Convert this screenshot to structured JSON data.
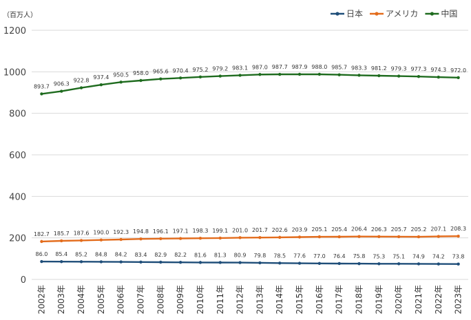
{
  "chart_data": {
    "type": "line",
    "title": "",
    "unit_label": "（百万人）",
    "xlabel": "",
    "ylabel": "",
    "ylim": [
      0,
      1200
    ],
    "yticks": [
      0,
      200,
      400,
      600,
      800,
      1000,
      1200
    ],
    "grid": true,
    "legend_position": "top-right",
    "categories": [
      "2002年",
      "2003年",
      "2004年",
      "2005年",
      "2006年",
      "2007年",
      "2008年",
      "2009年",
      "2010年",
      "2011年",
      "2012年",
      "2013年",
      "2014年",
      "2015年",
      "2016年",
      "2017年",
      "2018年",
      "2019年",
      "2020年",
      "2021年",
      "2022年",
      "2023年"
    ],
    "series": [
      {
        "name": "日本",
        "color": "#1f4e79",
        "values": [
          86.0,
          85.4,
          85.2,
          84.8,
          84.2,
          83.4,
          82.9,
          82.2,
          81.6,
          81.3,
          80.9,
          79.8,
          78.5,
          77.6,
          77.0,
          76.4,
          75.8,
          75.3,
          75.1,
          74.9,
          74.2,
          73.8
        ],
        "labels": [
          "86.0",
          "85.4",
          "85.2",
          "84.8",
          "84.2",
          "83.4",
          "82.9",
          "82.2",
          "81.6",
          "81.3",
          "80.9",
          "79.8",
          "78.5",
          "77.6",
          "77.0",
          "76.4",
          "75.8",
          "75.3",
          "75.1",
          "74.9",
          "74.2",
          "73.8"
        ]
      },
      {
        "name": "アメリカ",
        "color": "#e36c1c",
        "values": [
          182.7,
          185.7,
          187.6,
          190.0,
          192.3,
          194.8,
          196.1,
          197.1,
          198.3,
          199.1,
          201.0,
          201.7,
          202.6,
          203.9,
          205.1,
          205.4,
          206.4,
          206.3,
          205.7,
          205.2,
          207.1,
          208.3
        ],
        "labels": [
          "182.7",
          "185.7",
          "187.6",
          "190.0",
          "192.3",
          "194.8",
          "196.1",
          "197.1",
          "198.3",
          "199.1",
          "201.0",
          "201.7",
          "202.6",
          "203.9",
          "205.1",
          "205.4",
          "206.4",
          "206.3",
          "205.7",
          "205.2",
          "207.1",
          "208.3"
        ]
      },
      {
        "name": "中国",
        "color": "#1e6b1e",
        "values": [
          893.7,
          906.3,
          922.8,
          937.4,
          950.5,
          958.0,
          965.6,
          970.4,
          975.2,
          979.2,
          983.1,
          987.0,
          987.7,
          987.9,
          988.0,
          985.7,
          983.3,
          981.2,
          979.3,
          977.3,
          974.3,
          972.0
        ],
        "labels": [
          "893.7",
          "906.3",
          "922.8",
          "937.4",
          "950.5",
          "958.0",
          "965.6",
          "970.4",
          "975.2",
          "979.2",
          "983.1",
          "987.0",
          "987.7",
          "987.9",
          "988.0",
          "985.7",
          "983.3",
          "981.2",
          "979.3",
          "977.3",
          "974.3",
          "972.0"
        ]
      }
    ]
  }
}
